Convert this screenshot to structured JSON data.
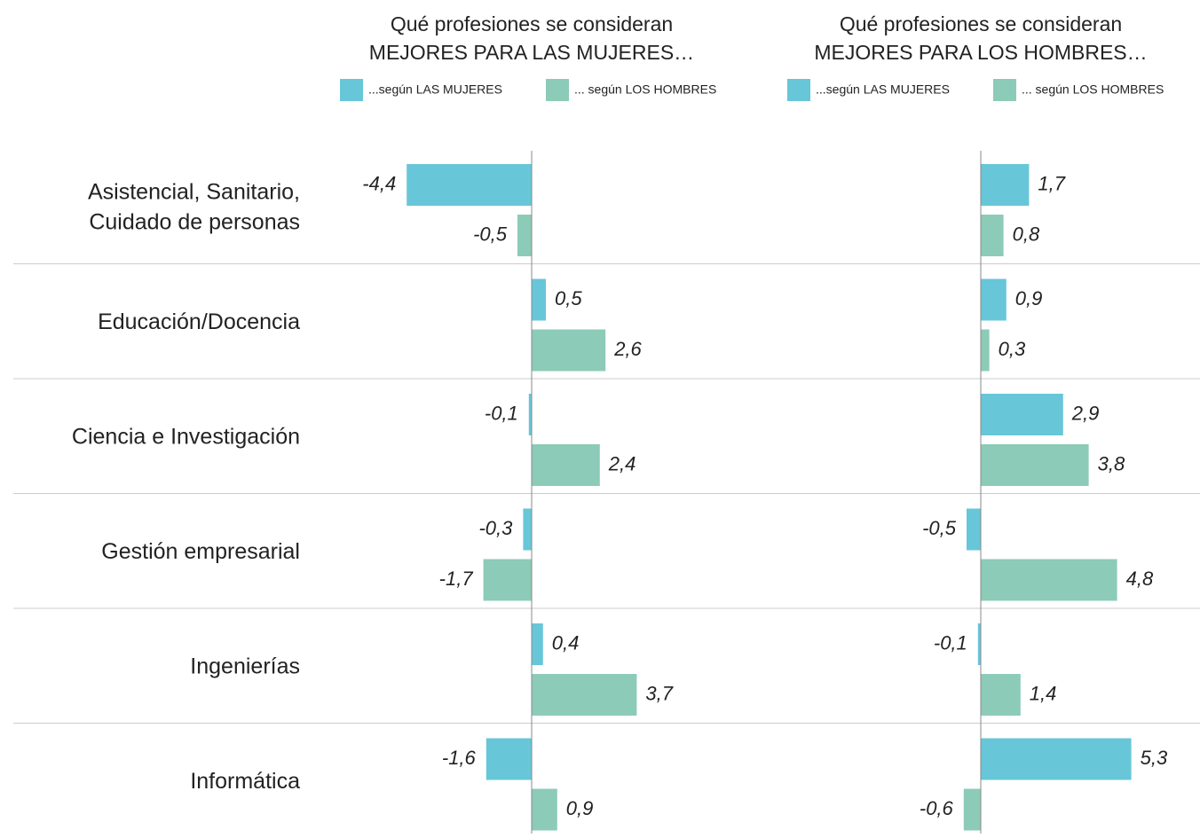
{
  "chart_data": {
    "type": "bar",
    "orientation": "horizontal",
    "categories": [
      [
        "Asistencial, Sanitario,",
        "Cuidado de personas"
      ],
      [
        "Educación/Docencia"
      ],
      [
        "Ciencia e Investigación"
      ],
      [
        "Gestión empresarial"
      ],
      [
        "Ingenierías"
      ],
      [
        "Informática"
      ]
    ],
    "panels": [
      {
        "title": [
          "Qué profesiones se consideran",
          "MEJORES PARA LAS MUJERES…"
        ],
        "xlim": [
          -6.5,
          7.5
        ],
        "series": [
          {
            "name": "...según LAS MUJERES",
            "color": "#68c6d9",
            "values": [
              -4.4,
              0.5,
              -0.1,
              -0.3,
              0.4,
              -1.6
            ],
            "value_labels": [
              "-4,4",
              "0,5",
              "-0,1",
              "-0,3",
              "0,4",
              "-1,6"
            ]
          },
          {
            "name": "... según LOS HOMBRES",
            "color": "#8ccbb7",
            "values": [
              -0.5,
              2.6,
              2.4,
              -1.7,
              3.7,
              0.9
            ],
            "value_labels": [
              "-0,5",
              "2,6",
              "2,4",
              "-1,7",
              "3,7",
              "0,9"
            ]
          }
        ]
      },
      {
        "title": [
          "Qué profesiones se consideran",
          "MEJORES PARA LOS HOMBRES…"
        ],
        "xlim": [
          -6.5,
          7.5
        ],
        "series": [
          {
            "name": "...según LAS MUJERES",
            "color": "#68c6d9",
            "values": [
              1.7,
              0.9,
              2.9,
              -0.5,
              -0.1,
              5.3
            ],
            "value_labels": [
              "1,7",
              "0,9",
              "2,9",
              "-0,5",
              "-0,1",
              "5,3"
            ]
          },
          {
            "name": "... según LOS HOMBRES",
            "color": "#8ccbb7",
            "values": [
              0.8,
              0.3,
              3.8,
              4.8,
              1.4,
              -0.6
            ],
            "value_labels": [
              "0,8",
              "0,3",
              "3,8",
              "4,8",
              "1,4",
              "-0,6"
            ]
          }
        ]
      }
    ]
  }
}
